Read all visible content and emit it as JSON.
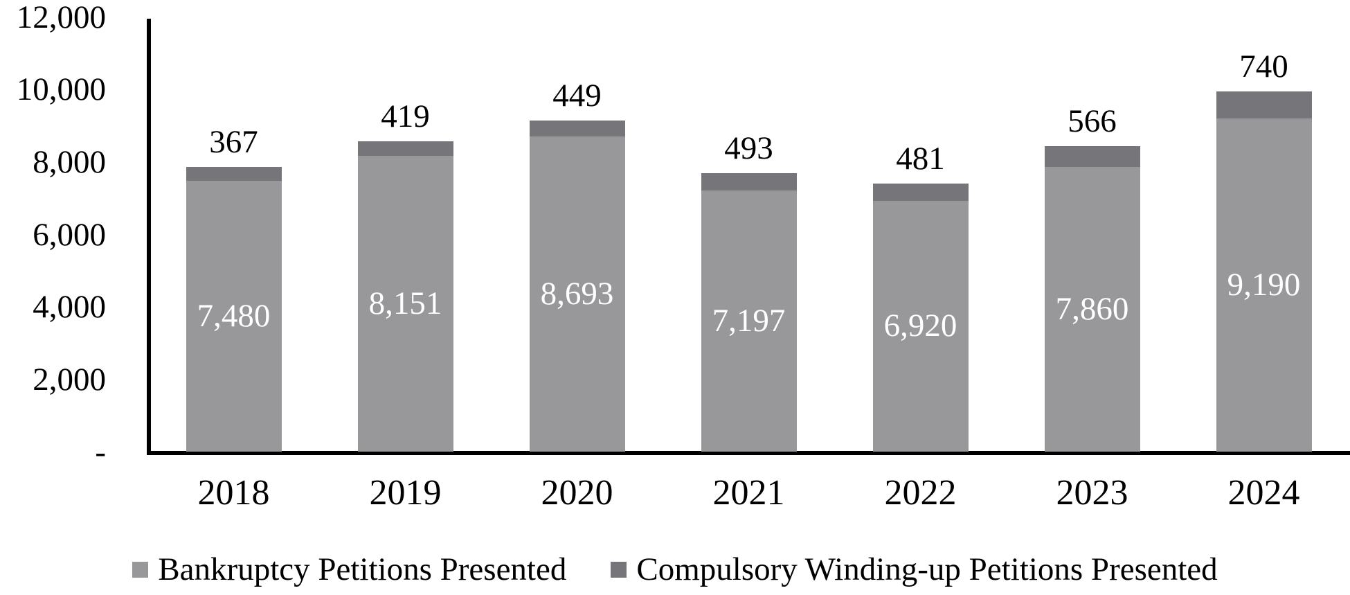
{
  "chart_data": {
    "type": "bar",
    "stacked": true,
    "title": "",
    "xlabel": "",
    "ylabel": "",
    "categories": [
      "2018",
      "2019",
      "2020",
      "2021",
      "2022",
      "2023",
      "2024"
    ],
    "series": [
      {
        "name": "Bankruptcy Petitions Presented",
        "values": [
          7480,
          8151,
          8693,
          7197,
          6920,
          7860,
          9190
        ],
        "labels": [
          "7,480",
          "8,151",
          "8,693",
          "7,197",
          "6,920",
          "7,860",
          "9,190"
        ],
        "color": "#98989B",
        "label_color": "#ffffff"
      },
      {
        "name": "Compulsory Winding-up Petitions Presented",
        "values": [
          367,
          419,
          449,
          493,
          481,
          566,
          740
        ],
        "labels": [
          "367",
          "419",
          "449",
          "493",
          "481",
          "566",
          "740"
        ],
        "color": "#76767A",
        "label_color": "#000000"
      }
    ],
    "ylim": [
      0,
      12000
    ],
    "y_axis": {
      "ticks": [
        {
          "value": 12000,
          "label": "12,000"
        },
        {
          "value": 10000,
          "label": "10,000"
        },
        {
          "value": 8000,
          "label": "8,000"
        },
        {
          "value": 6000,
          "label": "6,000"
        },
        {
          "value": 4000,
          "label": "4,000"
        },
        {
          "value": 2000,
          "label": "2,000"
        },
        {
          "value": 0,
          "label": "-"
        }
      ]
    },
    "grid": false,
    "legend_position": "bottom",
    "axis_color": "#000000",
    "background_color": "#ffffff"
  }
}
